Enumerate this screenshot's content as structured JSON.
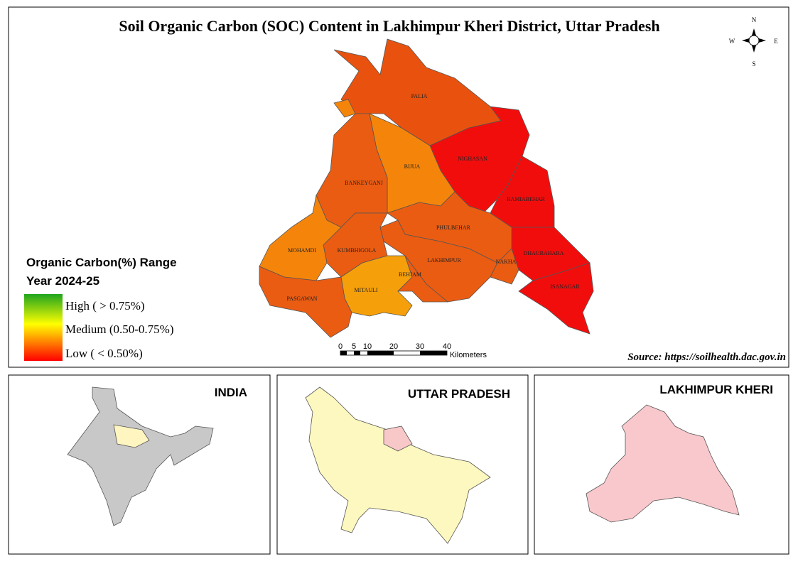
{
  "title": "Soil Organic Carbon (SOC) Content in Lakhimpur Kheri District, Uttar Pradesh",
  "compass": {
    "n": "N",
    "s": "S",
    "e": "E",
    "w": "W"
  },
  "blocks": [
    "PALIA",
    "NIGHASAN",
    "BIJUA",
    "BANKEYGANJ",
    "RAMIABEHAR",
    "PHULBEHAR",
    "MOHAMDI",
    "KUMBHIGOLA",
    "LAKHIMPUR",
    "NAKHA",
    "DHAURAHARA",
    "BEHJAM",
    "ISANAGAR",
    "MITAULI",
    "PASGAWAN"
  ],
  "legend": {
    "title": "Organic Carbon(%) Range",
    "subtitle": "Year 2024-25",
    "items": [
      "High ( > 0.75%)",
      "Medium  (0.50-0.75%)",
      "Low ( < 0.50%)"
    ]
  },
  "scale_bar": {
    "ticks": [
      0,
      5,
      10,
      20,
      30,
      40
    ],
    "unit": "Kilometers"
  },
  "source": "Source: https://soilhealth.dac.gov.in",
  "insets": [
    "INDIA",
    "UTTAR PRADESH",
    "LAKHIMPUR KHERI"
  ]
}
